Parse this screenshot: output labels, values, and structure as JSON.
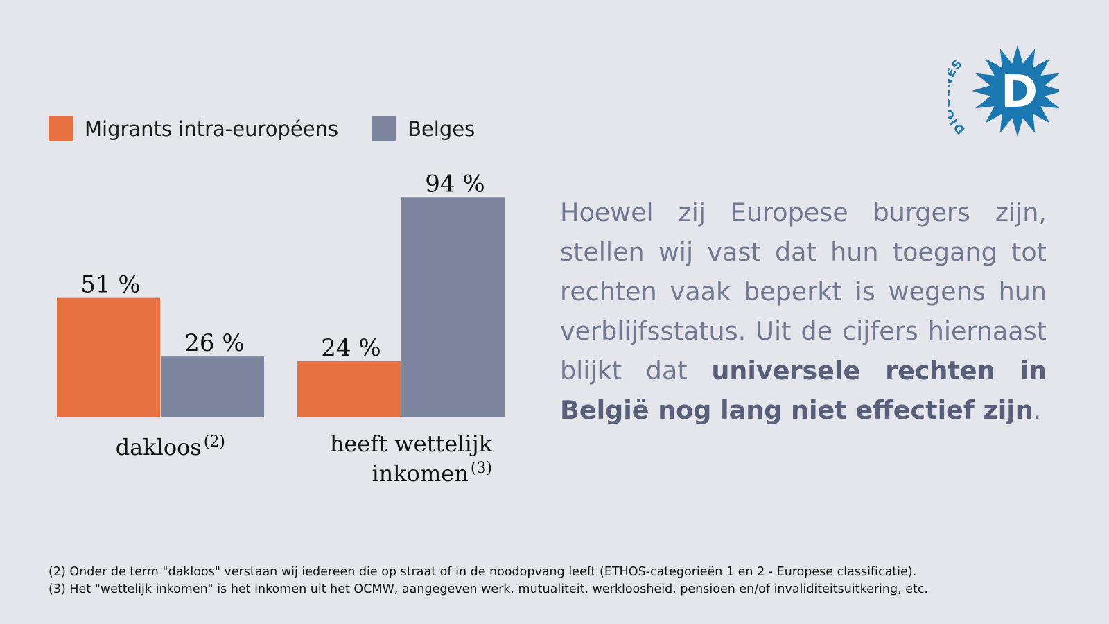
{
  "legend": [
    {
      "label": "Migrants intra-européens",
      "color": "#e87142"
    },
    {
      "label": "Belges",
      "color": "#7d849e"
    }
  ],
  "chart_data": {
    "type": "bar",
    "categories": [
      "dakloos",
      "heeft wettelijk inkomen"
    ],
    "category_notes": [
      "(2)",
      "(3)"
    ],
    "series": [
      {
        "name": "Migrants intra-européens",
        "values": [
          51,
          24
        ],
        "color": "#e87142"
      },
      {
        "name": "Belges",
        "values": [
          26,
          94
        ],
        "color": "#7d849e"
      }
    ],
    "value_labels": [
      [
        "51 %",
        "24 %"
      ],
      [
        "26 %",
        "94 %"
      ]
    ],
    "unit": "%",
    "ylim": [
      0,
      100
    ],
    "grid": false,
    "legend_position": "top-left"
  },
  "categories_display": {
    "c0_text": "dakloos",
    "c0_note": "(2)",
    "c1_line1": "heeft wettelijk",
    "c1_line2": "inkomen",
    "c1_note": "(3)"
  },
  "paragraph": {
    "plain": "Hoewel zij Europese burgers zijn, stellen wij vast dat hun toegang tot rechten vaak beperkt is wegens hun verblijfsstatus. Uit de cijfers hiernaast blijkt dat ",
    "bold": "universele rechten in België nog lang niet effectief zijn",
    "end": "."
  },
  "footnotes": [
    "(2) Onder de term \"dakloos\" verstaan wij iedereen die op straat of in de noodopvang leeft (ETHOS-categorieën 1 en 2 - Europese classificatie).",
    "(3) Het \"wettelijk inkomen\" is het inkomen uit het OCMW, aangegeven werk, mutualiteit, werkloosheid, pensioen en/of invaliditeitsuitkering, etc."
  ],
  "logo": {
    "text": "DIOGENES",
    "letter": "D",
    "color": "#1a77b0"
  }
}
